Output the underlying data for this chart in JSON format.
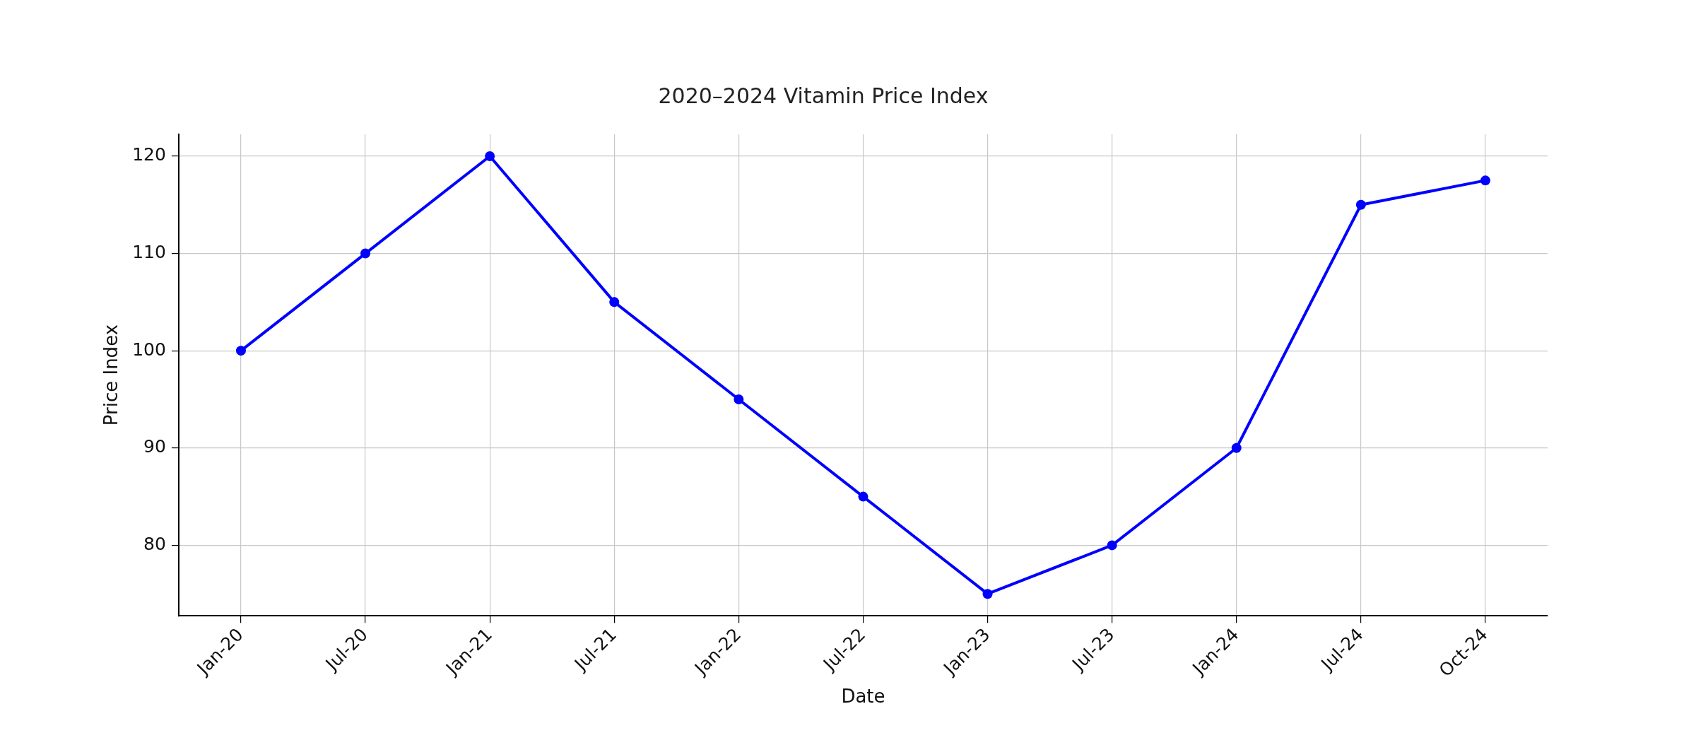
{
  "chart_data": {
    "type": "line",
    "title": "2020–2024 Vitamin Price Index",
    "xlabel": "Date",
    "ylabel": "Price Index",
    "categories": [
      "Jan-20",
      "Jul-20",
      "Jan-21",
      "Jul-21",
      "Jan-22",
      "Jul-22",
      "Jan-23",
      "Jul-23",
      "Jan-24",
      "Jul-24",
      "Oct-24"
    ],
    "series": [
      {
        "color": "#0000ff",
        "values": [
          100,
          110,
          120,
          105,
          95,
          85,
          75,
          80,
          90,
          115,
          117.5
        ]
      }
    ],
    "ylim": [
      72.75,
      122.25
    ],
    "yticks": [
      80,
      90,
      100,
      110,
      120
    ],
    "grid": true,
    "marker": "circle",
    "line_style": "solid"
  }
}
